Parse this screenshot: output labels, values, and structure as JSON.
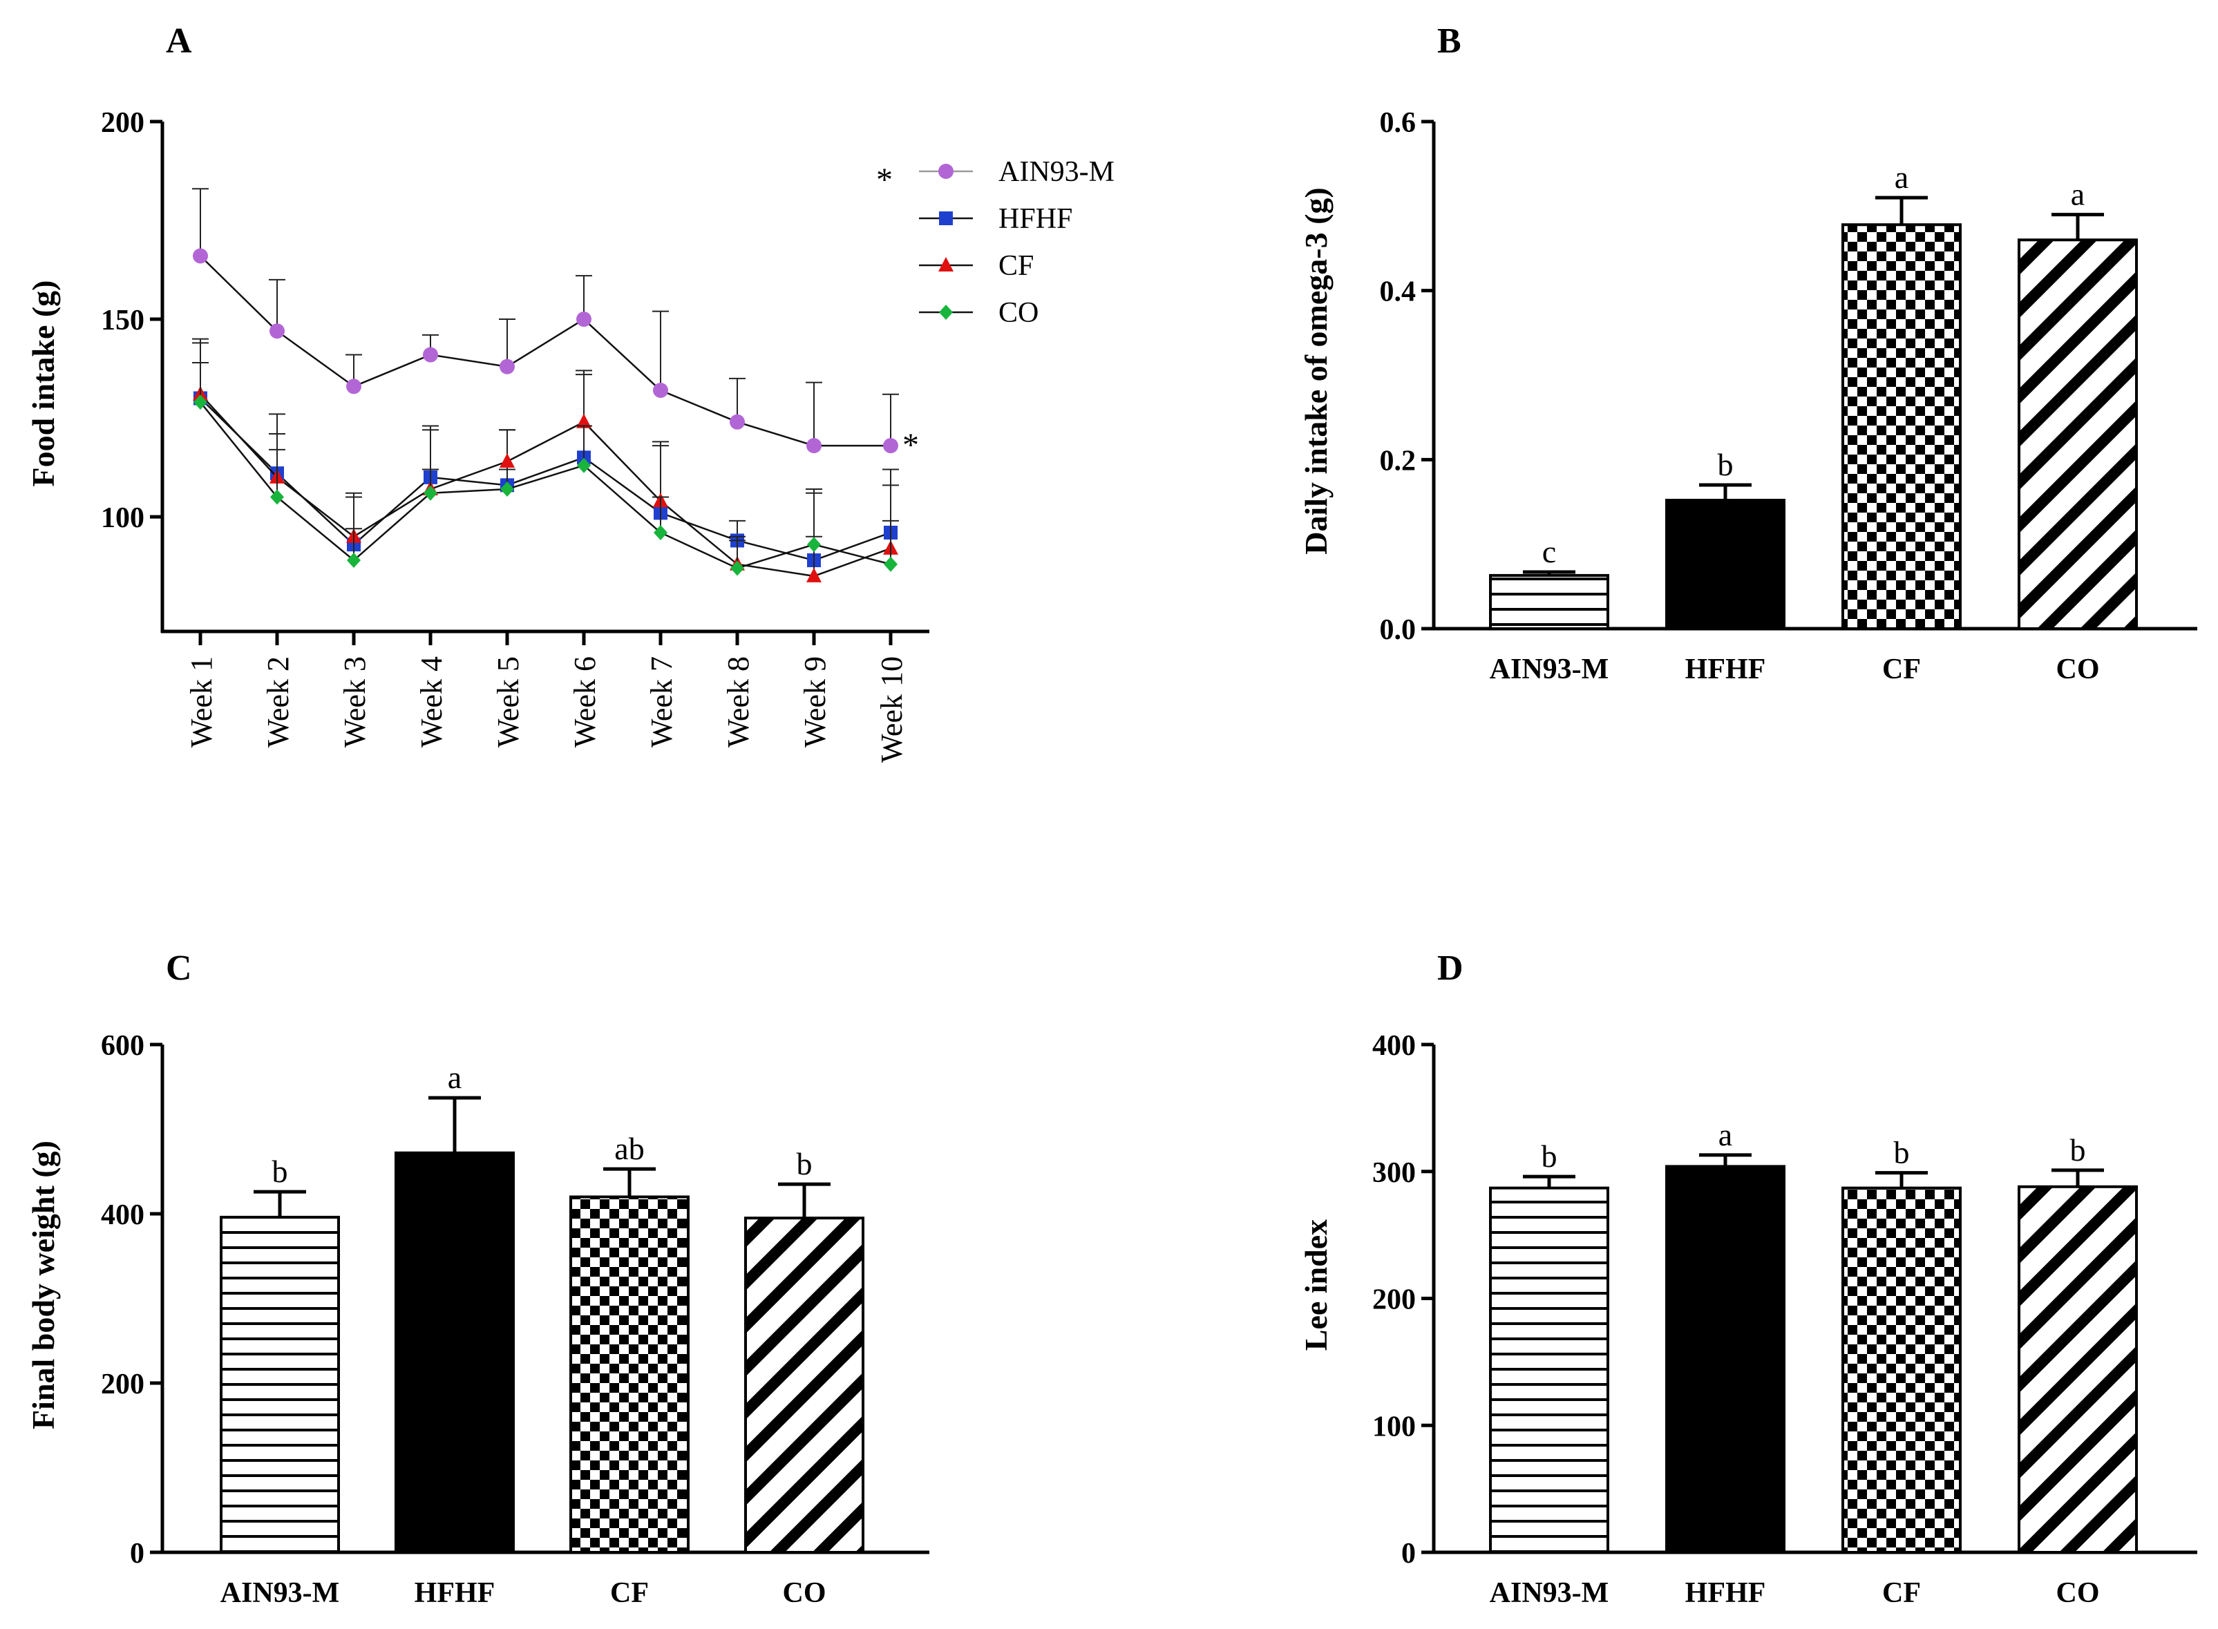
{
  "colors": {
    "AIN93-M": "#b266d6",
    "HFHF": "#1f3fcf",
    "CF": "#e01010",
    "CO": "#18b43c",
    "axis": "#000000"
  },
  "chart_data": [
    {
      "panel": "A",
      "type": "line",
      "title": "A",
      "ylabel": "Food intake (g)",
      "xlabel": "",
      "ylim": [
        71,
        200
      ],
      "yticks": [
        100,
        150,
        200
      ],
      "categories": [
        "Week 1",
        "Week 2",
        "Week 3",
        "Week 4",
        "Week 5",
        "Week 6",
        "Week 7",
        "Week 8",
        "Week 9",
        "Week 10"
      ],
      "legend_position": "top-right",
      "legend_star": "*",
      "end_star": "*",
      "series": [
        {
          "name": "AIN93-M",
          "marker": "circle",
          "values": [
            166,
            147,
            133,
            141,
            138,
            150,
            132,
            124,
            118,
            118
          ],
          "errors": [
            17,
            13,
            8,
            5,
            12,
            11,
            20,
            11,
            16,
            13
          ]
        },
        {
          "name": "HFHF",
          "marker": "square",
          "values": [
            130,
            111,
            93,
            110,
            108,
            115,
            101,
            94,
            89,
            96
          ],
          "errors": [
            15,
            15,
            12,
            13,
            14,
            21,
            18,
            5,
            6,
            16
          ]
        },
        {
          "name": "CF",
          "marker": "triangle",
          "values": [
            131,
            110,
            95,
            107,
            114,
            124,
            104,
            88,
            85,
            92
          ],
          "errors": [
            13,
            11,
            11,
            15,
            8,
            13,
            14,
            6,
            22,
            16
          ]
        },
        {
          "name": "CO",
          "marker": "diamond",
          "values": [
            129,
            105,
            89,
            106,
            107,
            113,
            96,
            87,
            93,
            88
          ],
          "errors": [
            10,
            12,
            8,
            6,
            5,
            10,
            9,
            8,
            13,
            11
          ]
        }
      ]
    },
    {
      "panel": "B",
      "type": "bar",
      "title": "B",
      "ylabel": "Daily intake of omega-3 (g)",
      "xlabel": "",
      "ylim": [
        0,
        0.6
      ],
      "yticks": [
        "0.0",
        "0.2",
        "0.4",
        "0.6"
      ],
      "categories": [
        "AIN93-M",
        "HFHF",
        "CF",
        "CO"
      ],
      "values": [
        0.063,
        0.152,
        0.478,
        0.46
      ],
      "errors": [
        0.004,
        0.018,
        0.032,
        0.03
      ],
      "significance": [
        "c",
        "b",
        "a",
        "a"
      ],
      "patterns": [
        "hlines",
        "solid",
        "checker",
        "diag"
      ]
    },
    {
      "panel": "C",
      "type": "bar",
      "title": "C",
      "ylabel": "Final body weight (g)",
      "xlabel": "",
      "ylim": [
        0,
        600
      ],
      "yticks": [
        "0",
        "200",
        "400",
        "600"
      ],
      "categories": [
        "AIN93-M",
        "HFHF",
        "CF",
        "CO"
      ],
      "values": [
        396,
        472,
        420,
        395
      ],
      "errors": [
        30,
        65,
        33,
        40
      ],
      "significance": [
        "b",
        "a",
        "ab",
        "b"
      ],
      "patterns": [
        "hlines",
        "solid",
        "checker",
        "diag"
      ]
    },
    {
      "panel": "D",
      "type": "bar",
      "title": "D",
      "ylabel": "Lee index",
      "xlabel": "",
      "ylim": [
        0,
        400
      ],
      "yticks": [
        "0",
        "100",
        "200",
        "300",
        "400"
      ],
      "categories": [
        "AIN93-M",
        "HFHF",
        "CF",
        "CO"
      ],
      "values": [
        287,
        304,
        287,
        288
      ],
      "errors": [
        9,
        9,
        12,
        13
      ],
      "significance": [
        "b",
        "a",
        "b",
        "b"
      ],
      "patterns": [
        "hlines",
        "solid",
        "checker",
        "diag"
      ]
    }
  ]
}
